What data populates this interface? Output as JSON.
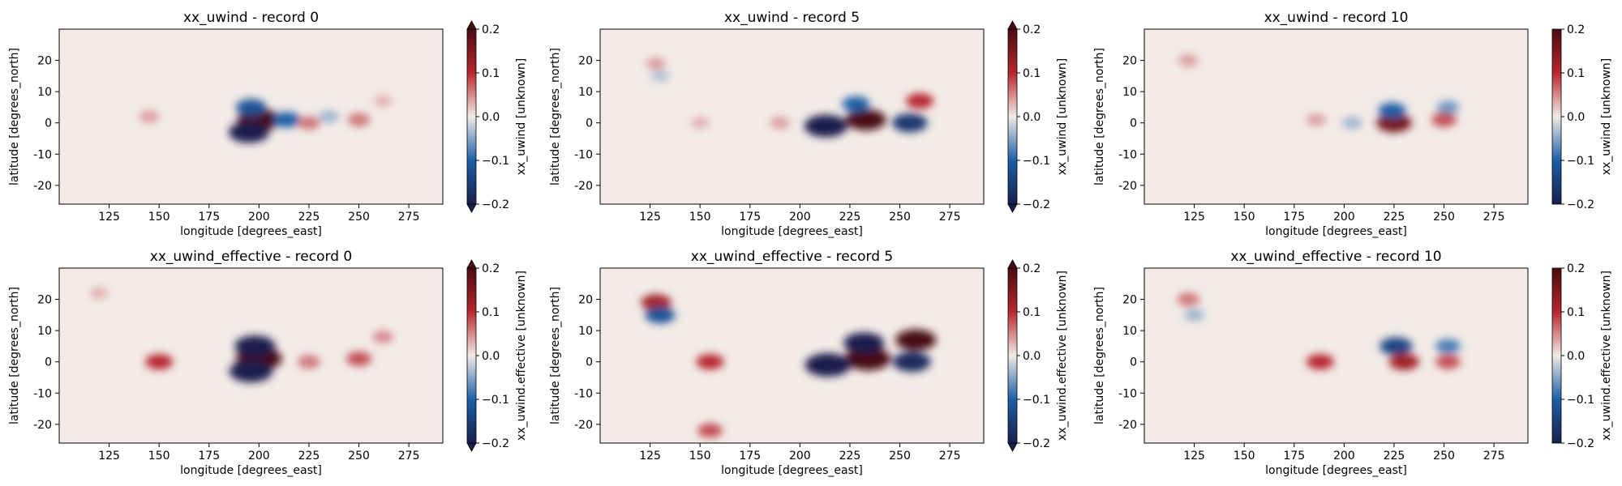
{
  "figure": {
    "colormap": "RdBu_r (balance-like)",
    "colors": {
      "neg_max": "#1a1f4d",
      "neg": "#1c5fa8",
      "zero": "#f2ebe7",
      "pos": "#b7272d",
      "pos_max": "#4a0b12"
    }
  },
  "chart_data": [
    {
      "type": "heatmap",
      "title": "xx_uwind - record 0",
      "xlabel": "longitude [degrees_east]",
      "ylabel": "latitude [degrees_north]",
      "colorbar_label": "xx_uwind [unknown]",
      "colorbar_extend": "both",
      "xlim": [
        100,
        292
      ],
      "ylim": [
        -26,
        30
      ],
      "xticks": [
        125,
        150,
        175,
        200,
        225,
        250,
        275
      ],
      "yticks": [
        -20,
        -10,
        0,
        10,
        20
      ],
      "clim": [
        -0.2,
        0.2
      ],
      "cticks": [
        -0.2,
        -0.1,
        0.0,
        0.1,
        0.2
      ],
      "features": [
        {
          "lon": 200,
          "lat": 1,
          "value": 0.22
        },
        {
          "lon": 195,
          "lat": -3,
          "value": -0.2
        },
        {
          "lon": 196,
          "lat": 5,
          "value": -0.12
        },
        {
          "lon": 214,
          "lat": 1,
          "value": -0.1
        },
        {
          "lon": 225,
          "lat": 0,
          "value": 0.06
        },
        {
          "lon": 250,
          "lat": 1,
          "value": 0.06
        },
        {
          "lon": 235,
          "lat": 2,
          "value": -0.04
        },
        {
          "lon": 145,
          "lat": 2,
          "value": 0.04
        },
        {
          "lon": 262,
          "lat": 7,
          "value": 0.03
        }
      ]
    },
    {
      "type": "heatmap",
      "title": "xx_uwind - record 5",
      "xlabel": "longitude [degrees_east]",
      "ylabel": "latitude [degrees_north]",
      "colorbar_label": "xx_uwind [unknown]",
      "colorbar_extend": "both",
      "xlim": [
        100,
        292
      ],
      "ylim": [
        -26,
        30
      ],
      "xticks": [
        125,
        150,
        175,
        200,
        225,
        250,
        275
      ],
      "yticks": [
        -20,
        -10,
        0,
        10,
        20
      ],
      "clim": [
        -0.2,
        0.2
      ],
      "cticks": [
        -0.2,
        -0.1,
        0.0,
        0.1,
        0.2
      ],
      "features": [
        {
          "lon": 233,
          "lat": 1,
          "value": 0.2
        },
        {
          "lon": 213,
          "lat": -1,
          "value": -0.22
        },
        {
          "lon": 255,
          "lat": 0,
          "value": -0.16
        },
        {
          "lon": 260,
          "lat": 7,
          "value": 0.1
        },
        {
          "lon": 228,
          "lat": 6,
          "value": -0.1
        },
        {
          "lon": 190,
          "lat": 0,
          "value": 0.04
        },
        {
          "lon": 150,
          "lat": 0,
          "value": 0.03
        },
        {
          "lon": 128,
          "lat": 19,
          "value": 0.04
        },
        {
          "lon": 130,
          "lat": 15,
          "value": -0.03
        }
      ]
    },
    {
      "type": "heatmap",
      "title": "xx_uwind - record 10",
      "xlabel": "longitude [degrees_east]",
      "ylabel": "latitude [degrees_north]",
      "colorbar_label": "xx_uwind [unknown]",
      "colorbar_extend": "neither",
      "xlim": [
        100,
        292
      ],
      "ylim": [
        -26,
        30
      ],
      "xticks": [
        125,
        150,
        175,
        200,
        225,
        250,
        275
      ],
      "yticks": [
        -20,
        -10,
        0,
        10,
        20
      ],
      "clim": [
        -0.2,
        0.2
      ],
      "cticks": [
        -0.2,
        -0.1,
        0.0,
        0.1,
        0.2
      ],
      "features": [
        {
          "lon": 225,
          "lat": 0,
          "value": 0.16
        },
        {
          "lon": 224,
          "lat": 4,
          "value": -0.1
        },
        {
          "lon": 250,
          "lat": 1,
          "value": 0.08
        },
        {
          "lon": 252,
          "lat": 5,
          "value": -0.06
        },
        {
          "lon": 186,
          "lat": 1,
          "value": 0.04
        },
        {
          "lon": 204,
          "lat": 0,
          "value": -0.04
        },
        {
          "lon": 122,
          "lat": 20,
          "value": 0.04
        }
      ]
    },
    {
      "type": "heatmap",
      "title": "xx_uwind_effective - record 0",
      "xlabel": "longitude [degrees_east]",
      "ylabel": "latitude [degrees_north]",
      "colorbar_label": "xx_uwind.effective [unknown]",
      "colorbar_extend": "both",
      "xlim": [
        100,
        292
      ],
      "ylim": [
        -26,
        30
      ],
      "xticks": [
        125,
        150,
        175,
        200,
        225,
        250,
        275
      ],
      "yticks": [
        -20,
        -10,
        0,
        10,
        20
      ],
      "clim": [
        -0.2,
        0.2
      ],
      "cticks": [
        -0.2,
        -0.1,
        0.0,
        0.1,
        0.2
      ],
      "features": [
        {
          "lon": 200,
          "lat": 1,
          "value": 0.24
        },
        {
          "lon": 196,
          "lat": -3,
          "value": -0.22
        },
        {
          "lon": 198,
          "lat": 5,
          "value": -0.2
        },
        {
          "lon": 150,
          "lat": 0,
          "value": 0.1
        },
        {
          "lon": 225,
          "lat": 0,
          "value": 0.06
        },
        {
          "lon": 250,
          "lat": 1,
          "value": 0.08
        },
        {
          "lon": 262,
          "lat": 8,
          "value": 0.05
        },
        {
          "lon": 120,
          "lat": 22,
          "value": 0.03
        }
      ]
    },
    {
      "type": "heatmap",
      "title": "xx_uwind_effective - record 5",
      "xlabel": "longitude [degrees_east]",
      "ylabel": "latitude [degrees_north]",
      "colorbar_label": "xx_uwind.effective [unknown]",
      "colorbar_extend": "both",
      "xlim": [
        100,
        292
      ],
      "ylim": [
        -26,
        30
      ],
      "xticks": [
        125,
        150,
        175,
        200,
        225,
        250,
        275
      ],
      "yticks": [
        -20,
        -10,
        0,
        10,
        20
      ],
      "clim": [
        -0.2,
        0.2
      ],
      "cticks": [
        -0.2,
        -0.1,
        0.0,
        0.1,
        0.2
      ],
      "features": [
        {
          "lon": 234,
          "lat": 1,
          "value": 0.24
        },
        {
          "lon": 214,
          "lat": -1,
          "value": -0.24
        },
        {
          "lon": 232,
          "lat": 6,
          "value": -0.2
        },
        {
          "lon": 258,
          "lat": 7,
          "value": 0.2
        },
        {
          "lon": 256,
          "lat": 0,
          "value": -0.18
        },
        {
          "lon": 155,
          "lat": 0,
          "value": 0.1
        },
        {
          "lon": 128,
          "lat": 19,
          "value": 0.12
        },
        {
          "lon": 130,
          "lat": 15,
          "value": -0.12
        },
        {
          "lon": 155,
          "lat": -22,
          "value": 0.08
        }
      ]
    },
    {
      "type": "heatmap",
      "title": "xx_uwind_effective - record 10",
      "xlabel": "longitude [degrees_east]",
      "ylabel": "latitude [degrees_north]",
      "colorbar_label": "xx_uwind.effective [unknown]",
      "colorbar_extend": "neither",
      "xlim": [
        100,
        292
      ],
      "ylim": [
        -26,
        30
      ],
      "xticks": [
        125,
        150,
        175,
        200,
        225,
        250,
        275
      ],
      "yticks": [
        -20,
        -10,
        0,
        10,
        20
      ],
      "clim": [
        -0.2,
        0.2
      ],
      "cticks": [
        -0.2,
        -0.1,
        0.0,
        0.1,
        0.2
      ],
      "features": [
        {
          "lon": 226,
          "lat": 5,
          "value": -0.14
        },
        {
          "lon": 230,
          "lat": 0,
          "value": 0.12
        },
        {
          "lon": 188,
          "lat": 0,
          "value": 0.1
        },
        {
          "lon": 252,
          "lat": 5,
          "value": -0.08
        },
        {
          "lon": 252,
          "lat": 0,
          "value": 0.08
        },
        {
          "lon": 122,
          "lat": 20,
          "value": 0.06
        },
        {
          "lon": 125,
          "lat": 15,
          "value": -0.04
        }
      ]
    }
  ]
}
